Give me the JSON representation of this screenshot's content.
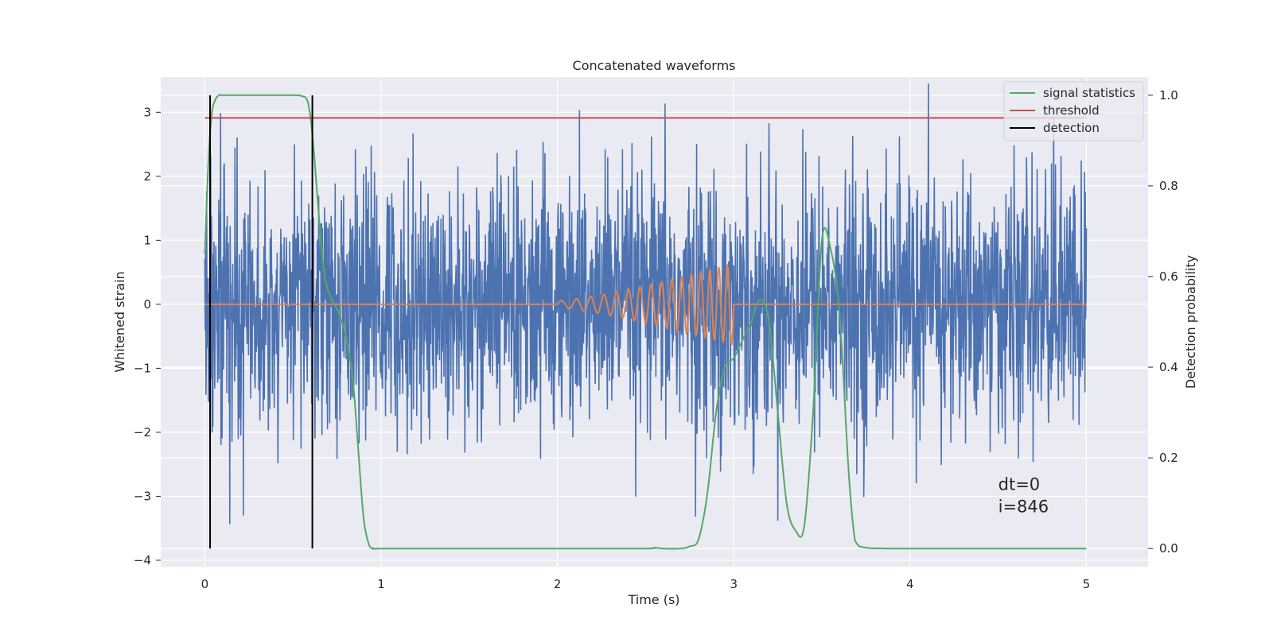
{
  "chart_data": {
    "type": "line",
    "title": "Concatenated waveforms",
    "xlabel": "Time (s)",
    "ylabel": "Whitened strain",
    "ylabel_right": "Detection probability",
    "xlim": [
      -0.25,
      5.35
    ],
    "ylim": [
      -4.1,
      3.55
    ],
    "ylim_right": [
      -0.04,
      1.04
    ],
    "x_ticks": [
      0,
      1,
      2,
      3,
      4,
      5
    ],
    "y_ticks": [
      3,
      2,
      1,
      0,
      -1,
      -2,
      -3,
      -4
    ],
    "y_ticks_right": [
      1.0,
      0.8,
      0.6,
      0.4,
      0.2,
      0.0
    ],
    "x_tick_labels": [
      "0",
      "1",
      "2",
      "3",
      "4",
      "5"
    ],
    "y_tick_labels": [
      "3",
      "2",
      "1",
      "0",
      "−1",
      "−2",
      "−3",
      "−4"
    ],
    "y_tick_labels_right": [
      "1.0",
      "0.8",
      "0.6",
      "0.4",
      "0.2",
      "0.0"
    ],
    "grid": true,
    "legend_position": "top-right",
    "legend": [
      {
        "label": "signal statistics",
        "color": "#55a868"
      },
      {
        "label": "threshold",
        "color": "#c44e52"
      },
      {
        "label": "detection",
        "color": "#000000"
      }
    ],
    "series": [
      {
        "name": "whitened strain",
        "axis": "left",
        "color": "#4c72b0",
        "description_noise": true,
        "x_range": [
          0,
          5
        ],
        "std": 1.0
      },
      {
        "name": "injected waveform",
        "axis": "left",
        "color": "#dd8452",
        "x_range": [
          0,
          5
        ],
        "chirp_start": 2.0,
        "chirp_end": 3.0,
        "amplitude_start": 0.05,
        "amplitude_end": 0.65
      },
      {
        "name": "signal statistics",
        "axis": "right",
        "color": "#55a868",
        "x": [
          0.0,
          0.02,
          0.04,
          0.06,
          0.08,
          0.1,
          0.15,
          0.3,
          0.5,
          0.55,
          0.58,
          0.6,
          0.62,
          0.65,
          0.68,
          0.72,
          0.76,
          0.8,
          0.84,
          0.87,
          0.9,
          0.93,
          0.96,
          1.0,
          1.5,
          2.0,
          2.5,
          2.55,
          2.6,
          2.7,
          2.75,
          2.8,
          2.85,
          2.9,
          2.95,
          3.0,
          3.05,
          3.1,
          3.15,
          3.2,
          3.25,
          3.3,
          3.35,
          3.4,
          3.45,
          3.5,
          3.55,
          3.6,
          3.65,
          3.68,
          3.7,
          3.75,
          3.9,
          4.5,
          5.0
        ],
        "y": [
          0.65,
          0.85,
          0.96,
          0.99,
          1.0,
          1.0,
          1.0,
          1.0,
          1.0,
          0.998,
          0.99,
          0.95,
          0.87,
          0.72,
          0.6,
          0.55,
          0.52,
          0.47,
          0.37,
          0.22,
          0.07,
          0.01,
          0.0,
          0.0,
          0.0,
          0.0,
          0.0,
          0.002,
          0.0,
          0.0,
          0.005,
          0.02,
          0.12,
          0.3,
          0.4,
          0.42,
          0.46,
          0.5,
          0.55,
          0.5,
          0.3,
          0.1,
          0.04,
          0.05,
          0.3,
          0.68,
          0.66,
          0.52,
          0.18,
          0.04,
          0.01,
          0.002,
          0.0,
          0.0,
          0.0
        ]
      },
      {
        "name": "threshold",
        "axis": "right",
        "color": "#c44e52",
        "x": [
          0.0,
          5.0
        ],
        "y": [
          0.95,
          0.95
        ]
      },
      {
        "name": "detection",
        "axis": "right",
        "color": "#000000",
        "lines_x": [
          0.03,
          0.61
        ],
        "y_span": [
          0.0,
          1.0
        ]
      }
    ],
    "annotations": [
      {
        "text": "dt=0",
        "x": 4.5,
        "y": -2.9
      },
      {
        "text": "i=846",
        "x": 4.5,
        "y": -3.25
      }
    ],
    "colors": {
      "axes_bg": "#eaeaf2",
      "grid": "#ffffff",
      "strain": "#4c72b0",
      "waveform": "#dd8452",
      "statistics": "#55a868",
      "threshold": "#c44e52",
      "detection": "#000000"
    }
  }
}
